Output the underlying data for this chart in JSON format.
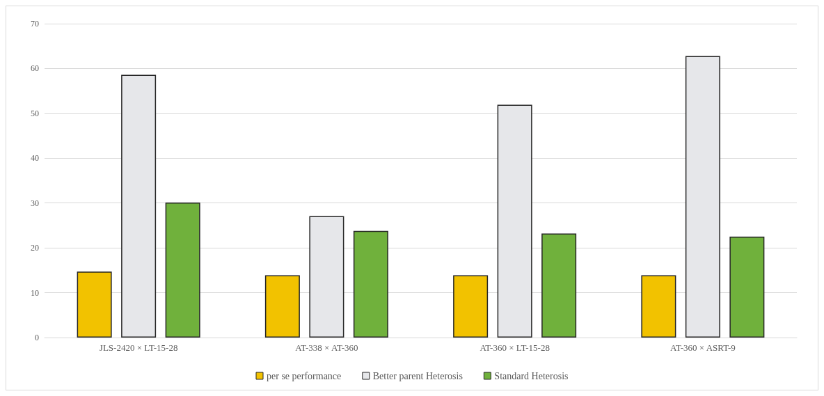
{
  "chart_data": {
    "type": "bar",
    "categories": [
      "JLS-2420 × LT-15-28",
      "AT-338 × AT-360",
      "AT-360 × LT-15-28",
      "AT-360 × ASRT-9"
    ],
    "series": [
      {
        "name": "per se performance",
        "color": "#f2c200",
        "values": [
          14.7,
          13.9,
          13.9,
          13.9
        ]
      },
      {
        "name": "Better parent Heterosis",
        "color": "#e6e7ea",
        "values": [
          58.6,
          27.1,
          51.9,
          62.8
        ]
      },
      {
        "name": "Standard Heterosis",
        "color": "#70b13c",
        "values": [
          30.1,
          23.8,
          23.2,
          22.5
        ]
      }
    ],
    "ylim": [
      0,
      70
    ],
    "yticks": [
      0,
      10,
      20,
      30,
      40,
      50,
      60,
      70
    ],
    "grid": "y",
    "legend": "bottom"
  }
}
